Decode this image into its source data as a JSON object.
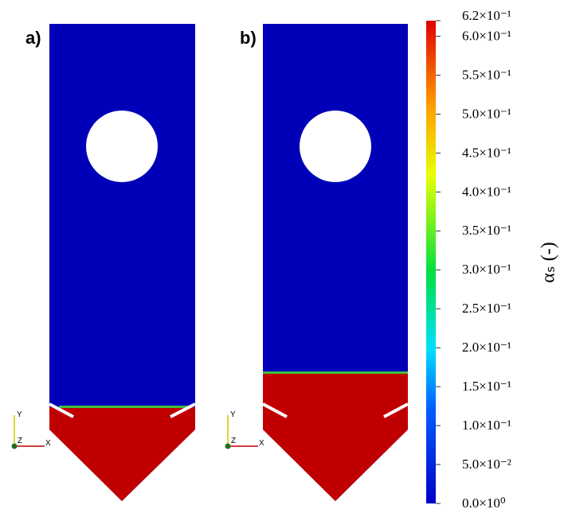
{
  "panels": [
    {
      "label": "a)"
    },
    {
      "label": "b)"
    }
  ],
  "triad": {
    "y": "Y",
    "z": "Z",
    "x": "X"
  },
  "colorbar": {
    "title": "αₛ (-)",
    "lim": [
      0,
      0.62
    ],
    "ticks": [
      {
        "value": 0,
        "label": "0.0×10⁰"
      },
      {
        "value": 0.05,
        "label": "5.0×10⁻²"
      },
      {
        "value": 0.1,
        "label": "1.0×10⁻¹"
      },
      {
        "value": 0.15,
        "label": "1.5×10⁻¹"
      },
      {
        "value": 0.2,
        "label": "2.0×10⁻¹"
      },
      {
        "value": 0.25,
        "label": "2.5×10⁻¹"
      },
      {
        "value": 0.3,
        "label": "3.0×10⁻¹"
      },
      {
        "value": 0.35,
        "label": "3.5×10⁻¹"
      },
      {
        "value": 0.4,
        "label": "4.0×10⁻¹"
      },
      {
        "value": 0.45,
        "label": "4.5×10⁻¹"
      },
      {
        "value": 0.5,
        "label": "5.0×10⁻¹"
      },
      {
        "value": 0.55,
        "label": "5.5×10⁻¹"
      },
      {
        "value": 0.6,
        "label": "6.0×10⁻¹"
      },
      {
        "value": 0.62,
        "label": "6.2×10⁻¹"
      }
    ]
  }
}
